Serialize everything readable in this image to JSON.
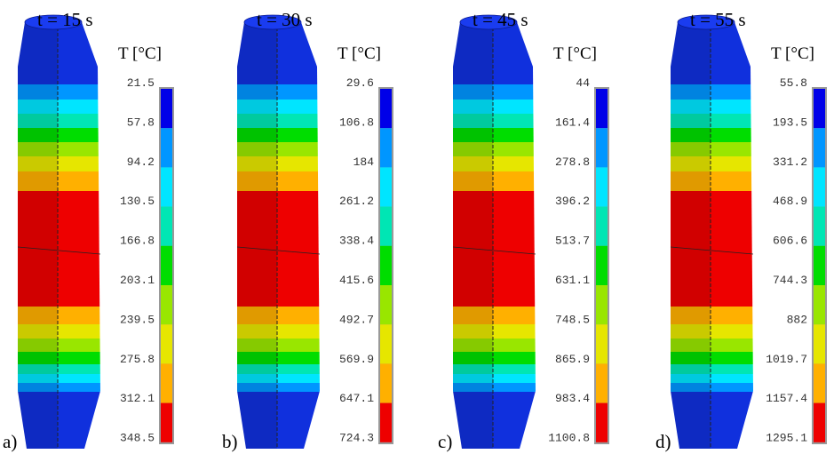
{
  "panels": [
    {
      "label": "a)",
      "time": "t = 15 s",
      "legend_title": "T [°C]",
      "legend_labels": [
        "21.5",
        "57.8",
        "94.2",
        "130.5",
        "166.8",
        "203.1",
        "239.5",
        "275.8",
        "312.1",
        "348.5"
      ]
    },
    {
      "label": "b)",
      "time": "t = 30 s",
      "legend_title": "T [°C]",
      "legend_labels": [
        "29.6",
        "106.8",
        "184",
        "261.2",
        "338.4",
        "415.6",
        "492.7",
        "569.9",
        "647.1",
        "724.3"
      ]
    },
    {
      "label": "c)",
      "time": "t = 45 s",
      "legend_title": "T [°C]",
      "legend_labels": [
        "44",
        "161.4",
        "278.8",
        "396.2",
        "513.7",
        "631.1",
        "748.5",
        "865.9",
        "983.4",
        "1100.8"
      ]
    },
    {
      "label": "d)",
      "time": "t = 55 s",
      "legend_title": "T [°C]",
      "legend_labels": [
        "55.8",
        "193.5",
        "331.2",
        "468.9",
        "606.6",
        "744.3",
        "882",
        "1019.7",
        "1157.4",
        "1295.1"
      ]
    }
  ]
}
